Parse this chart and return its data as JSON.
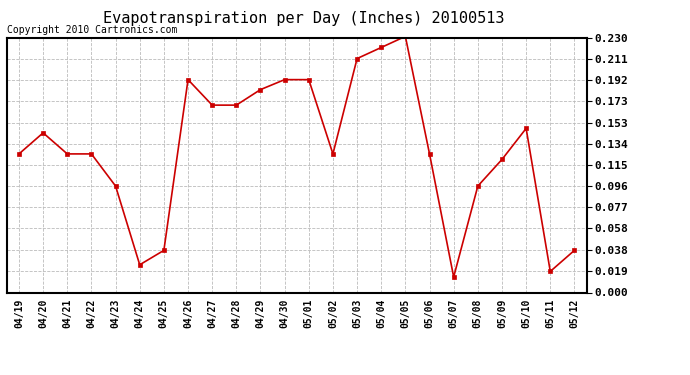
{
  "title": "Evapotranspiration per Day (Inches) 20100513",
  "copyright": "Copyright 2010 Cartronics.com",
  "x_labels": [
    "04/19",
    "04/20",
    "04/21",
    "04/22",
    "04/23",
    "04/24",
    "04/25",
    "04/26",
    "04/27",
    "04/28",
    "04/29",
    "04/30",
    "05/01",
    "05/02",
    "05/03",
    "05/04",
    "05/05",
    "05/06",
    "05/07",
    "05/08",
    "05/09",
    "05/10",
    "05/11",
    "05/12"
  ],
  "y_values": [
    0.125,
    0.144,
    0.125,
    0.125,
    0.096,
    0.025,
    0.038,
    0.192,
    0.169,
    0.169,
    0.183,
    0.192,
    0.192,
    0.125,
    0.211,
    0.221,
    0.231,
    0.125,
    0.014,
    0.096,
    0.12,
    0.148,
    0.019,
    0.038
  ],
  "line_color": "#cc0000",
  "marker": "s",
  "marker_size": 3,
  "ylim": [
    0.0,
    0.23
  ],
  "yticks": [
    0.0,
    0.019,
    0.038,
    0.058,
    0.077,
    0.096,
    0.115,
    0.134,
    0.153,
    0.173,
    0.192,
    0.211,
    0.23
  ],
  "bg_color": "#ffffff",
  "grid_color": "#bbbbbb",
  "title_fontsize": 11,
  "copyright_fontsize": 7,
  "tick_fontsize": 7,
  "ytick_fontsize": 8
}
